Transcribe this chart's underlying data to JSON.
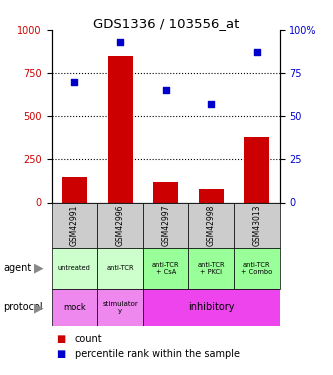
{
  "title": "GDS1336 / 103556_at",
  "samples": [
    "GSM42991",
    "GSM42996",
    "GSM42997",
    "GSM42998",
    "GSM43013"
  ],
  "counts": [
    150,
    850,
    120,
    80,
    380
  ],
  "percentile_ranks": [
    70,
    93,
    65,
    57,
    87
  ],
  "count_ylim": [
    0,
    1000
  ],
  "count_yticks": [
    0,
    250,
    500,
    750,
    1000
  ],
  "count_yticklabels": [
    "0",
    "250",
    "500",
    "750",
    "1000"
  ],
  "percentile_ylim": [
    0,
    100
  ],
  "percentile_yticks": [
    0,
    25,
    50,
    75,
    100
  ],
  "percentile_yticklabels": [
    "0",
    "25",
    "50",
    "75",
    "100%"
  ],
  "bar_color": "#cc0000",
  "dot_color": "#0000cc",
  "agent_labels": [
    "untreated",
    "anti-TCR",
    "anti-TCR\n+ CsA",
    "anti-TCR\n+ PKCi",
    "anti-TCR\n+ Combo"
  ],
  "agent_colors": [
    "#ccffcc",
    "#ccffcc",
    "#99ff99",
    "#99ff99",
    "#99ff99"
  ],
  "sample_bg_color": "#cccccc",
  "left_label_color": "#cc0000",
  "right_label_color": "#0000cc",
  "grid_color": "#000000",
  "legend_count_color": "#cc0000",
  "legend_pct_color": "#0000cc",
  "mock_color": "#ee88ee",
  "stimulatory_color": "#ee88ee",
  "inhibitory_color": "#ee44ee"
}
